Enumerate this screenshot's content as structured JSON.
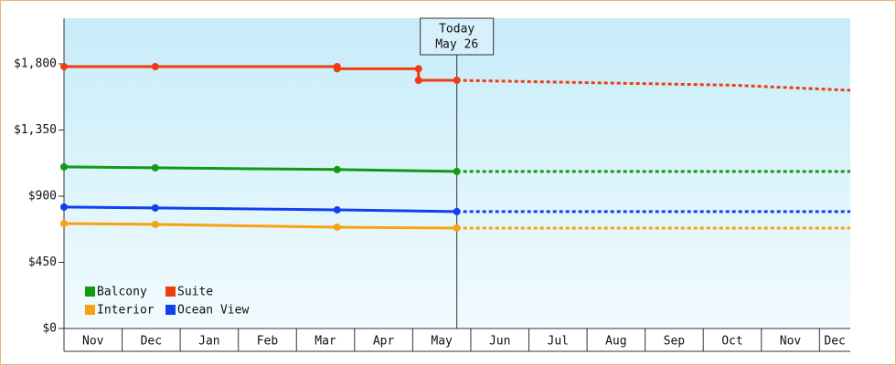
{
  "chart_data": {
    "type": "line",
    "categories": [
      "Nov",
      "Dec",
      "Jan",
      "Feb",
      "Mar",
      "Apr",
      "May",
      "Jun",
      "Jul",
      "Aug",
      "Sep",
      "Oct",
      "Nov",
      "Dec"
    ],
    "xlim": [
      0,
      13.53
    ],
    "ylim": [
      0,
      2110
    ],
    "yticks": [
      {
        "value": 0,
        "label": "$0"
      },
      {
        "value": 450,
        "label": "$450"
      },
      {
        "value": 900,
        "label": "$900"
      },
      {
        "value": 1350,
        "label": "$1,350"
      },
      {
        "value": 1800,
        "label": "$1,800"
      }
    ],
    "today": {
      "x": 6.76,
      "label": [
        "Today",
        "May 26"
      ]
    },
    "series": [
      {
        "name": "Balcony",
        "color": "#129a12",
        "x": [
          0,
          1.57,
          4.7,
          6.76
        ],
        "values": [
          1099,
          1093,
          1081,
          1068
        ],
        "forecast_x": [
          6.76,
          13.53
        ],
        "forecast_values": [
          1068,
          1068
        ]
      },
      {
        "name": "Suite",
        "color": "#f03c10",
        "x": [
          0,
          1.57,
          4.7,
          4.7,
          6.1,
          6.1,
          6.76
        ],
        "values": [
          1781,
          1781,
          1781,
          1766,
          1766,
          1688,
          1688
        ],
        "forecast_x": [
          6.76,
          9.3,
          11.5,
          13.53
        ],
        "forecast_values": [
          1688,
          1670,
          1655,
          1620
        ]
      },
      {
        "name": "Interior",
        "color": "#f5a30f",
        "x": [
          0,
          1.57,
          4.7,
          6.76
        ],
        "values": [
          714,
          708,
          689,
          683
        ],
        "forecast_x": [
          6.76,
          13.53
        ],
        "forecast_values": [
          683,
          683
        ]
      },
      {
        "name": "Ocean View",
        "color": "#1040f0",
        "x": [
          0,
          1.57,
          4.7,
          6.76
        ],
        "values": [
          826,
          820,
          807,
          795
        ],
        "forecast_x": [
          6.76,
          13.53
        ],
        "forecast_values": [
          795,
          795
        ]
      }
    ]
  }
}
